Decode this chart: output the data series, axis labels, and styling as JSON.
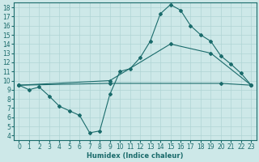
{
  "xlabel": "Humidex (Indice chaleur)",
  "xlim": [
    -0.5,
    23.5
  ],
  "ylim": [
    3.5,
    18.5
  ],
  "yticks": [
    4,
    5,
    6,
    7,
    8,
    9,
    10,
    11,
    12,
    13,
    14,
    15,
    16,
    17,
    18
  ],
  "xticks": [
    0,
    1,
    2,
    3,
    4,
    5,
    6,
    7,
    8,
    9,
    10,
    11,
    12,
    13,
    14,
    15,
    16,
    17,
    18,
    19,
    20,
    21,
    22,
    23
  ],
  "xtick_labels": [
    "0",
    "1",
    "2",
    "3",
    "4",
    "5",
    "6",
    "7",
    "8",
    "9",
    "10",
    "11",
    "12",
    "13",
    "14",
    "15",
    "16",
    "17",
    "18",
    "19",
    "20",
    "21",
    "22",
    "23"
  ],
  "bg_color": "#cde8e8",
  "line_color": "#1a6b6b",
  "grid_color": "#b0d4d4",
  "line1_x": [
    0,
    1,
    2,
    3,
    4,
    5,
    6,
    7,
    8,
    9,
    10,
    11,
    12,
    13,
    14,
    15,
    16,
    17,
    18,
    19,
    20,
    21,
    22,
    23
  ],
  "line1_y": [
    9.5,
    9.0,
    9.3,
    8.3,
    7.2,
    6.7,
    6.2,
    4.3,
    4.5,
    8.5,
    11.0,
    11.3,
    12.5,
    14.3,
    17.3,
    18.3,
    17.7,
    16.0,
    15.0,
    14.3,
    12.7,
    11.8,
    10.8,
    9.5
  ],
  "line2_x": [
    0,
    9,
    15,
    19,
    23
  ],
  "line2_y": [
    9.5,
    10.0,
    14.0,
    13.0,
    9.5
  ],
  "line3_x": [
    0,
    9,
    20,
    23
  ],
  "line3_y": [
    9.5,
    9.7,
    9.7,
    9.5
  ],
  "tick_fontsize": 5.5,
  "xlabel_fontsize": 6.0
}
